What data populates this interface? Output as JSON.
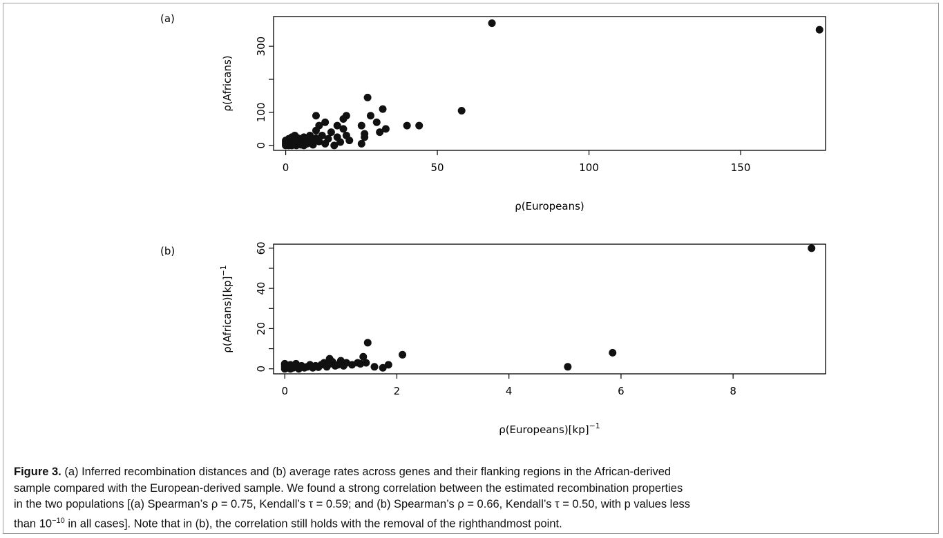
{
  "chart_data": [
    {
      "type": "scatter",
      "panel_label": "(a)",
      "xlabel": "ρ(Europeans)",
      "ylabel": "ρ(Africans)",
      "xlim": [
        -4,
        178
      ],
      "ylim": [
        -15,
        390
      ],
      "xticks": [
        0,
        50,
        100,
        150
      ],
      "yticks": [
        0,
        100,
        300
      ],
      "ytick_minor": [
        200
      ],
      "grid": false,
      "legend": "none",
      "points": [
        [
          0,
          0
        ],
        [
          0,
          5
        ],
        [
          0,
          10
        ],
        [
          0,
          15
        ],
        [
          0.5,
          2
        ],
        [
          0.5,
          8
        ],
        [
          1,
          0
        ],
        [
          1,
          4
        ],
        [
          1,
          12
        ],
        [
          1,
          20
        ],
        [
          1.5,
          6
        ],
        [
          2,
          0
        ],
        [
          2,
          10
        ],
        [
          2,
          18
        ],
        [
          2,
          25
        ],
        [
          2.5,
          3
        ],
        [
          3,
          8
        ],
        [
          3,
          15
        ],
        [
          3,
          30
        ],
        [
          3.5,
          0
        ],
        [
          4,
          5
        ],
        [
          4,
          22
        ],
        [
          4,
          12
        ],
        [
          5,
          2
        ],
        [
          5,
          18
        ],
        [
          5,
          8
        ],
        [
          6,
          0
        ],
        [
          6,
          14
        ],
        [
          6,
          25
        ],
        [
          7,
          5
        ],
        [
          7,
          20
        ],
        [
          8,
          10
        ],
        [
          8,
          30
        ],
        [
          9,
          2
        ],
        [
          9,
          15
        ],
        [
          10,
          22
        ],
        [
          10,
          45
        ],
        [
          10,
          90
        ],
        [
          11,
          12
        ],
        [
          11,
          60
        ],
        [
          12,
          30
        ],
        [
          13,
          5
        ],
        [
          13,
          70
        ],
        [
          14,
          20
        ],
        [
          15,
          40
        ],
        [
          16,
          0
        ],
        [
          17,
          25
        ],
        [
          17,
          60
        ],
        [
          18,
          10
        ],
        [
          19,
          50
        ],
        [
          19,
          80
        ],
        [
          20,
          90
        ],
        [
          20,
          30
        ],
        [
          21,
          15
        ],
        [
          25,
          5
        ],
        [
          25,
          60
        ],
        [
          26,
          35
        ],
        [
          26,
          25
        ],
        [
          27,
          145
        ],
        [
          28,
          90
        ],
        [
          30,
          70
        ],
        [
          31,
          40
        ],
        [
          32,
          110
        ],
        [
          33,
          50
        ],
        [
          40,
          60
        ],
        [
          44,
          60
        ],
        [
          58,
          105
        ],
        [
          68,
          370
        ],
        [
          176,
          350
        ]
      ]
    },
    {
      "type": "scatter",
      "panel_label": "(b)",
      "xlabel": "ρ(Europeans)[kp]",
      "xlabel_sup": "−1",
      "ylabel": "ρ(Africans)[kp]",
      "ylabel_sup": "−1",
      "xlim": [
        -0.2,
        9.65
      ],
      "ylim": [
        -2.5,
        62
      ],
      "xticks": [
        0,
        2,
        4,
        6,
        8
      ],
      "yticks": [
        0,
        20,
        40,
        60
      ],
      "ytick_minor": [
        10,
        30,
        50
      ],
      "grid": false,
      "legend": "none",
      "points": [
        [
          0,
          0
        ],
        [
          0,
          1
        ],
        [
          0,
          2
        ],
        [
          0,
          2.5
        ],
        [
          0.05,
          0.5
        ],
        [
          0.05,
          1.5
        ],
        [
          0.1,
          0
        ],
        [
          0.1,
          1
        ],
        [
          0.1,
          2
        ],
        [
          0.15,
          0.5
        ],
        [
          0.2,
          1
        ],
        [
          0.2,
          2.5
        ],
        [
          0.25,
          0
        ],
        [
          0.3,
          1.5
        ],
        [
          0.35,
          0.5
        ],
        [
          0.4,
          1
        ],
        [
          0.45,
          2
        ],
        [
          0.5,
          0.5
        ],
        [
          0.55,
          1.5
        ],
        [
          0.6,
          0.8
        ],
        [
          0.65,
          2
        ],
        [
          0.7,
          3
        ],
        [
          0.75,
          1
        ],
        [
          0.8,
          2.5
        ],
        [
          0.8,
          5
        ],
        [
          0.85,
          3.5
        ],
        [
          0.9,
          1.5
        ],
        [
          0.95,
          2
        ],
        [
          1.0,
          4
        ],
        [
          1.05,
          1.5
        ],
        [
          1.1,
          3
        ],
        [
          1.2,
          2
        ],
        [
          1.3,
          3
        ],
        [
          1.35,
          2.5
        ],
        [
          1.4,
          6
        ],
        [
          1.45,
          3
        ],
        [
          1.48,
          13
        ],
        [
          1.6,
          1
        ],
        [
          1.75,
          0.5
        ],
        [
          1.85,
          2
        ],
        [
          2.1,
          7
        ],
        [
          5.05,
          1
        ],
        [
          5.85,
          8
        ],
        [
          9.4,
          60
        ]
      ]
    }
  ],
  "caption": {
    "figure_label": "Figure 3.",
    "lines": [
      " (a) Inferred recombination distances and (b) average rates across genes and their flanking regions in the African-derived",
      "sample compared with the European-derived sample. We found a strong correlation between the estimated recombination properties",
      "in the two populations [(a) Spearman’s ρ = 0.75, Kendall’s τ = 0.59; and (b) Spearman’s ρ = 0.66, Kendall’s τ = 0.50, with p values less",
      "than 10",
      "−10",
      " in all cases]. Note that in (b), the correlation still holds with the removal of the righthandmost point."
    ]
  }
}
